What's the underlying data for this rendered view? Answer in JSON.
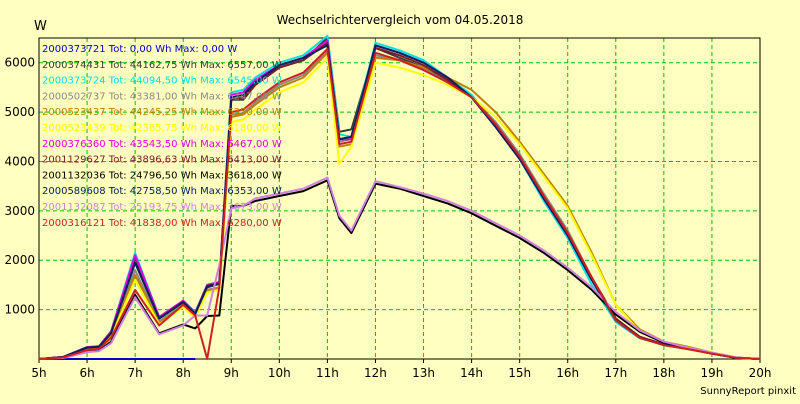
{
  "chart_data": {
    "type": "line",
    "title": "Wechselrichtervergleich vom 04.05.2018",
    "ylabel": "W",
    "footer": "SunnyReport pinxit",
    "ylim": [
      0,
      6500
    ],
    "xlim": [
      5,
      20
    ],
    "y_ticks": [
      1000,
      2000,
      3000,
      4000,
      5000,
      6000
    ],
    "x_ticks": [
      "5h",
      "6h",
      "7h",
      "8h",
      "9h",
      "10h",
      "11h",
      "12h",
      "13h",
      "14h",
      "15h",
      "16h",
      "17h",
      "18h",
      "19h",
      "20h"
    ],
    "grid": true,
    "legend_placement": "top-left",
    "x": [
      5.0,
      5.5,
      6.0,
      6.25,
      6.5,
      7.0,
      7.5,
      8.0,
      8.25,
      8.5,
      8.75,
      9.0,
      9.25,
      9.5,
      10.0,
      10.5,
      11.0,
      11.25,
      11.5,
      12.0,
      12.5,
      13.0,
      13.5,
      14.0,
      14.5,
      15.0,
      15.5,
      16.0,
      16.5,
      17.0,
      17.5,
      18.0,
      18.5,
      19.0,
      19.5,
      20.0
    ],
    "series": [
      {
        "name": "2000373721 Tot: 0,00 Wh Max: 0,00 W",
        "color": "#0000CC",
        "values": [
          0,
          0,
          0,
          0,
          0,
          0,
          0,
          0,
          0,
          null,
          null,
          null,
          null,
          null,
          null,
          null,
          null,
          null,
          null,
          null,
          null,
          null,
          null,
          null,
          null,
          null,
          null,
          null,
          null,
          null,
          null,
          null,
          null,
          null,
          null,
          null
        ]
      },
      {
        "name": "2000374431 Tot: 44162,75 Wh Max: 6557,00 W",
        "color": "#3A3A3A",
        "values": [
          0,
          40,
          230,
          250,
          520,
          2050,
          820,
          1150,
          900,
          1450,
          1520,
          5250,
          5250,
          5550,
          5900,
          6050,
          6500,
          4600,
          4650,
          6300,
          6100,
          5900,
          5600,
          5300,
          4700,
          4050,
          3250,
          2550,
          1650,
          800,
          450,
          280,
          210,
          110,
          25,
          0
        ]
      },
      {
        "name": "2000373724 Tot: 44094,50 Wh Max: 6545,00 W",
        "color": "#00E0E0",
        "values": [
          0,
          40,
          240,
          260,
          560,
          2150,
          850,
          1180,
          950,
          1500,
          1560,
          5400,
          5450,
          5700,
          6000,
          6150,
          6545,
          4550,
          4500,
          6400,
          6250,
          6050,
          5700,
          5350,
          4750,
          4050,
          3200,
          2450,
          1500,
          750,
          420,
          280,
          210,
          110,
          25,
          0
        ]
      },
      {
        "name": "2000502737 Tot: 43381,00 Wh Max: 6247,00 W",
        "color": "#888888",
        "values": [
          0,
          35,
          200,
          230,
          480,
          1800,
          760,
          1100,
          880,
          1400,
          1450,
          4950,
          4980,
          5200,
          5550,
          5750,
          6247,
          4400,
          4450,
          6150,
          6050,
          5880,
          5600,
          5300,
          4800,
          4150,
          3350,
          2600,
          1650,
          820,
          430,
          280,
          200,
          110,
          25,
          0
        ]
      },
      {
        "name": "2000523437 Tot: 44245,25 Wh Max: 6350,00 W",
        "color": "#C08000",
        "values": [
          0,
          35,
          190,
          220,
          460,
          1700,
          730,
          1080,
          860,
          1380,
          1440,
          4900,
          4950,
          5150,
          5500,
          5700,
          6200,
          4300,
          4350,
          6100,
          6050,
          5900,
          5700,
          5450,
          5000,
          4400,
          3750,
          3100,
          2150,
          1100,
          600,
          350,
          250,
          130,
          30,
          0
        ]
      },
      {
        "name": "2000523439 Tot: 42385,75 Wh Max: 6180,00 W",
        "color": "#FFFF00",
        "values": [
          0,
          30,
          180,
          210,
          440,
          1600,
          700,
          1050,
          840,
          1350,
          1400,
          4800,
          4850,
          5050,
          5400,
          5600,
          6100,
          3950,
          4300,
          6000,
          5900,
          5750,
          5550,
          5300,
          4900,
          4350,
          3700,
          3050,
          2100,
          1100,
          550,
          320,
          230,
          120,
          25,
          0
        ]
      },
      {
        "name": "2000376360 Tot: 43543,50 Wh Max: 6467,00 W",
        "color": "#E000E0",
        "values": [
          0,
          40,
          240,
          260,
          560,
          2100,
          850,
          1180,
          940,
          1500,
          1560,
          5350,
          5400,
          5650,
          5950,
          6100,
          6450,
          4450,
          4450,
          6350,
          6200,
          6000,
          5700,
          5300,
          4700,
          4050,
          3250,
          2500,
          1600,
          800,
          450,
          300,
          220,
          120,
          30,
          0
        ]
      },
      {
        "name": "2001129627 Tot: 43896,63 Wh Max: 6413,00 W",
        "color": "#7A1A2A",
        "values": [
          0,
          40,
          230,
          250,
          530,
          1950,
          820,
          1160,
          920,
          1480,
          1530,
          5250,
          5300,
          5550,
          5900,
          6050,
          6400,
          4450,
          4500,
          6300,
          6150,
          5950,
          5650,
          5300,
          4750,
          4100,
          3300,
          2550,
          1650,
          820,
          450,
          290,
          210,
          110,
          25,
          0
        ]
      },
      {
        "name": "2001132036 Tot: 24796,50 Wh Max: 3618,00 W",
        "color": "#000000",
        "values": [
          0,
          20,
          150,
          170,
          350,
          1300,
          520,
          700,
          620,
          870,
          880,
          3100,
          3100,
          3200,
          3300,
          3400,
          3618,
          2850,
          2550,
          3550,
          3450,
          3300,
          3150,
          2950,
          2700,
          2450,
          2150,
          1800,
          1400,
          900,
          550,
          330,
          220,
          120,
          25,
          0
        ]
      },
      {
        "name": "2000589608 Tot: 42758,50 Wh Max: 6353,00 W",
        "color": "#002060",
        "values": [
          0,
          40,
          230,
          250,
          520,
          1950,
          820,
          1150,
          910,
          1470,
          1520,
          5300,
          5350,
          5600,
          5950,
          6100,
          6350,
          4450,
          4500,
          6350,
          6200,
          6000,
          5700,
          5300,
          4700,
          4050,
          3250,
          2500,
          1600,
          780,
          430,
          290,
          210,
          110,
          25,
          0
        ]
      },
      {
        "name": "2001132087 Tot: 25193,75 Wh Max: 3673,00 W",
        "color": "#D080E0",
        "values": [
          0,
          20,
          140,
          160,
          320,
          1250,
          500,
          680,
          880,
          880,
          1900,
          3050,
          3100,
          3250,
          3350,
          3450,
          3673,
          2900,
          2600,
          3600,
          3480,
          3350,
          3200,
          3000,
          2750,
          2500,
          2200,
          1850,
          1450,
          950,
          580,
          350,
          230,
          130,
          30,
          0
        ]
      },
      {
        "name": "2000316121 Tot: 41838,00 Wh Max: 6280,00 W",
        "color": "#CC2020",
        "values": [
          0,
          30,
          180,
          210,
          430,
          1400,
          680,
          1100,
          880,
          0,
          1450,
          5000,
          5050,
          5250,
          5600,
          5800,
          6280,
          4350,
          4400,
          6200,
          6050,
          5850,
          5600,
          5300,
          4750,
          4100,
          3300,
          2550,
          1650,
          780,
          430,
          280,
          200,
          110,
          25,
          0
        ]
      }
    ]
  }
}
